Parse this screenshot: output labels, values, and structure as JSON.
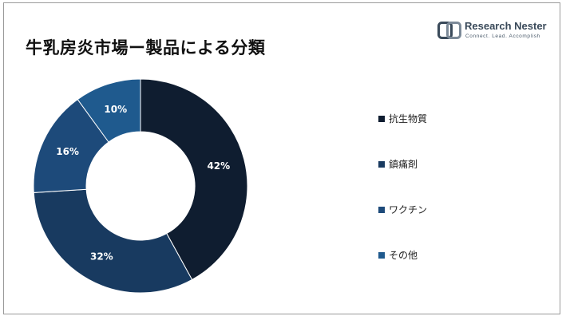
{
  "title": "牛乳房炎市場ー製品による分類",
  "logo": {
    "name": "Research Nester",
    "tagline": "Connect. Lead. Accomplish",
    "icon": "research-nester-logo-icon"
  },
  "chart_data": {
    "type": "pie",
    "donut": true,
    "title": "牛乳房炎市場ー製品による分類",
    "categories": [
      "抗生物質",
      "鎮痛剤",
      "ワクチン",
      "その他"
    ],
    "values": [
      42,
      32,
      16,
      10
    ],
    "labels": [
      "42%",
      "32%",
      "16%",
      "10%"
    ],
    "colors": [
      "#0f1d30",
      "#183a60",
      "#1d4a7a",
      "#1f5a8e"
    ],
    "legend_position": "right"
  }
}
